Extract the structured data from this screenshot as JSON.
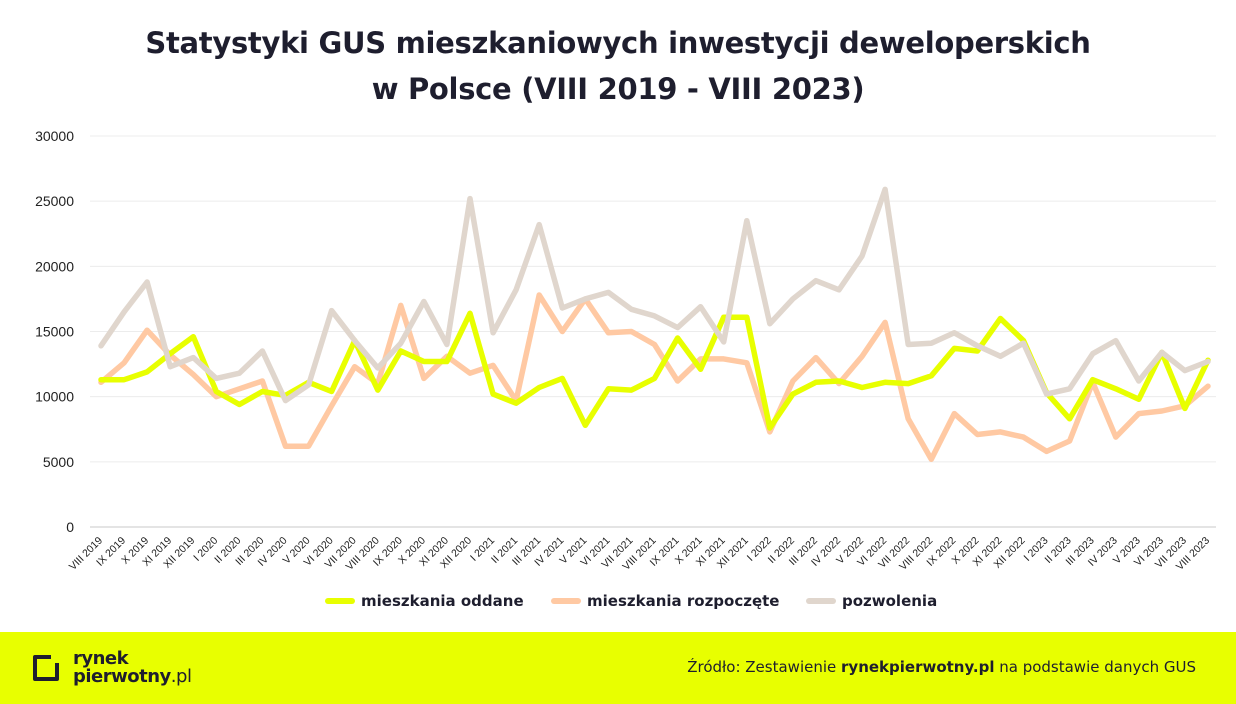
{
  "title_line1": "Statystyki GUS mieszkaniowych inwestycji deweloperskich",
  "title_line2": "w Polsce (VIII 2019 - VIII 2023)",
  "footer": {
    "logo_line1": "rynek",
    "logo_line2": "pierwotny",
    "logo_suffix": ".pl",
    "source_prefix": "Źródło: Zestawienie ",
    "source_brand": "rynekpierwotny.pl",
    "source_suffix": " na podstawie danych GUS"
  },
  "colors": {
    "oddane": "#e8ff00",
    "rozpoczete": "#ffc9a3",
    "pozwolenia": "#e0d6cd",
    "footer_bg": "#e8ff00",
    "text": "#1e1e2e"
  },
  "chart_data": {
    "type": "line",
    "ylim": [
      0,
      30000
    ],
    "yticks": [
      "0",
      "5000",
      "10000",
      "15000",
      "20000",
      "25000",
      "30000"
    ],
    "grid": true,
    "legend_position": "bottom",
    "categories": [
      "VIII 2019",
      "IX 2019",
      "X 2019",
      "XI 2019",
      "XII 2019",
      "I 2020",
      "II 2020",
      "III 2020",
      "IV 2020",
      "V 2020",
      "VI 2020",
      "VII 2020",
      "VIII 2020",
      "IX 2020",
      "X 2020",
      "XI 2020",
      "XII 2020",
      "I 2021",
      "II 2021",
      "III 2021",
      "IV 2021",
      "V 2021",
      "VI 2021",
      "VII 2021",
      "VIII 2021",
      "IX 2021",
      "X 2021",
      "XI 2021",
      "XII 2021",
      "I 2022",
      "II 2022",
      "III 2022",
      "IV 2022",
      "V 2022",
      "VI 2022",
      "VII 2022",
      "VIII 2022",
      "IX 2022",
      "X 2022",
      "XI 2022",
      "XII 2022",
      "I 2023",
      "II 2023",
      "III 2023",
      "IV 2023",
      "V 2023",
      "VI 2023",
      "VII 2023",
      "VIII 2023"
    ],
    "series": [
      {
        "name": "mieszkania oddane",
        "color": "#e8ff00",
        "values": [
          11300,
          11300,
          11900,
          13300,
          14600,
          10400,
          9400,
          10400,
          10100,
          11100,
          10400,
          14300,
          10500,
          13500,
          12700,
          12700,
          16400,
          10200,
          9500,
          10700,
          11400,
          7800,
          10600,
          10500,
          11400,
          14500,
          12100,
          16100,
          16100,
          7600,
          10200,
          11100,
          11200,
          10700,
          11100,
          11000,
          11600,
          13700,
          13500,
          16000,
          14300,
          10300,
          8300,
          11300,
          10600,
          9800,
          13400,
          9100,
          12800
        ]
      },
      {
        "name": "mieszkania rozpoczęte",
        "color": "#ffc9a3",
        "values": [
          11100,
          12600,
          15100,
          13200,
          11700,
          10000,
          10600,
          11200,
          6200,
          6200,
          9300,
          12300,
          11000,
          17000,
          11400,
          13100,
          11800,
          12400,
          9700,
          17800,
          15000,
          17500,
          14900,
          15000,
          14000,
          11200,
          12900,
          12900,
          12600,
          7300,
          11200,
          13000,
          11000,
          13100,
          15700,
          8300,
          5200,
          8700,
          7100,
          7300,
          6900,
          5800,
          6600,
          11100,
          6900,
          8700,
          8900,
          9300,
          10800
        ]
      },
      {
        "name": "pozwolenia",
        "color": "#e0d6cd",
        "values": [
          13900,
          16500,
          18800,
          12300,
          13000,
          11400,
          11800,
          13500,
          9700,
          10900,
          16600,
          14300,
          12200,
          14100,
          17300,
          14000,
          25200,
          14900,
          18200,
          23200,
          16800,
          17500,
          18000,
          16700,
          16200,
          15300,
          16900,
          14200,
          23500,
          15600,
          17500,
          18900,
          18200,
          20800,
          25900,
          14000,
          14100,
          14900,
          13900,
          13100,
          14100,
          10200,
          10600,
          13300,
          14300,
          11200,
          13400,
          12000,
          12700
        ]
      }
    ]
  }
}
